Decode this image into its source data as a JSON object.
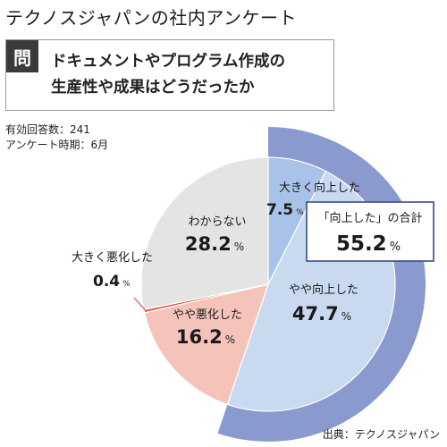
{
  "header": {
    "title": "テクノスジャパンの社内アンケート",
    "question_tag": "問",
    "question_line1": "ドキュメントやプログラム作成の",
    "question_line2": "生産性や成果はどうだったか"
  },
  "meta": {
    "respondents": "有効回答数：241",
    "period": "アンケート時期：6月"
  },
  "source": "出典：テクノスジャパン",
  "chart_data": {
    "type": "pie",
    "title": "",
    "start_angle_deg": 0,
    "direction": "clockwise",
    "unit": "%",
    "slices": [
      {
        "label": "大きく向上した",
        "value": 7.5,
        "value_text": "7.5",
        "color": "#a9c3e8"
      },
      {
        "label": "やや向上した",
        "value": 47.7,
        "value_text": "47.7",
        "color": "#c9d9f0"
      },
      {
        "label": "やや悪化した",
        "value": 16.2,
        "value_text": "16.2",
        "color": "#f4c4bb"
      },
      {
        "label": "大きく悪化した",
        "value": 0.4,
        "value_text": "0.4",
        "color": "#e05a4f"
      },
      {
        "label": "わからない",
        "value": 28.2,
        "value_text": "28.2",
        "color": "#e4e4e4"
      }
    ],
    "group_highlight": {
      "label": "「向上した」の合計",
      "value": 55.2,
      "value_text": "55.2",
      "covers": [
        "大きく向上した",
        "やや向上した"
      ],
      "color": "#8a9ace"
    }
  }
}
